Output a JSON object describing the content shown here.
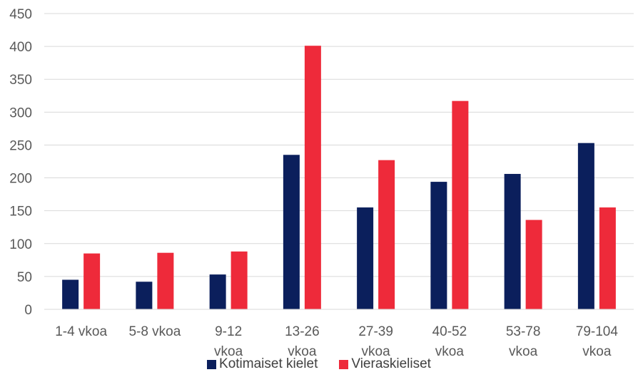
{
  "chart_data": {
    "type": "bar",
    "categories": [
      [
        "1-4 vkoa"
      ],
      [
        "5-8 vkoa"
      ],
      [
        "9-12",
        "vkoa"
      ],
      [
        "13-26",
        "vkoa"
      ],
      [
        "27-39",
        "vkoa"
      ],
      [
        "40-52",
        "vkoa"
      ],
      [
        "53-78",
        "vkoa"
      ],
      [
        "79-104",
        "vkoa"
      ]
    ],
    "series": [
      {
        "name": "Kotimaiset kielet",
        "color": "#0b1f5c",
        "values": [
          45,
          42,
          53,
          235,
          155,
          194,
          206,
          253
        ]
      },
      {
        "name": "Vieraskieliset",
        "color": "#ee2a3a",
        "values": [
          85,
          86,
          88,
          401,
          227,
          317,
          136,
          155
        ]
      }
    ],
    "ylim": [
      0,
      450
    ],
    "yticks": [
      "0",
      "50",
      "100",
      "150",
      "200",
      "250",
      "300",
      "350",
      "400",
      "450"
    ],
    "grid": true,
    "legend": "bottom"
  }
}
